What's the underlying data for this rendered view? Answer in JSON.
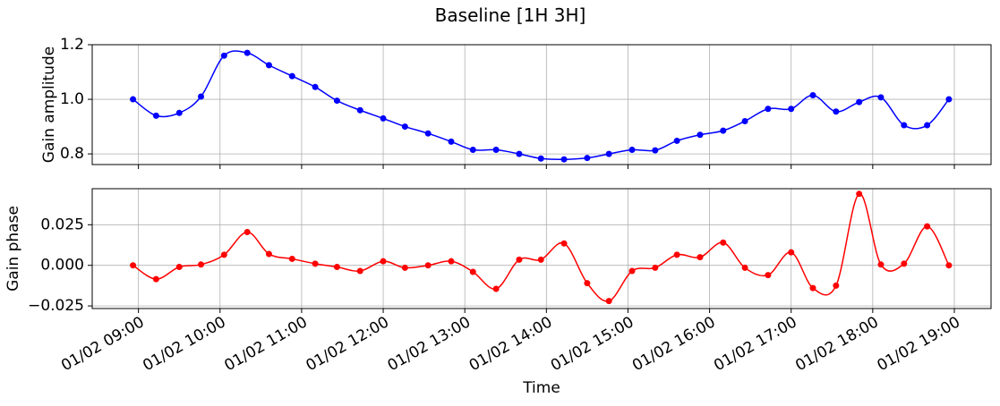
{
  "title": "Baseline [1H 3H]",
  "chart_data": [
    {
      "type": "line",
      "ylabel": "Gain amplitude",
      "grid": true,
      "x": [
        "01/02 08:56",
        "01/02 09:13",
        "01/02 09:30",
        "01/02 09:46",
        "01/02 10:03",
        "01/02 10:20",
        "01/02 10:36",
        "01/02 10:53",
        "01/02 11:10",
        "01/02 11:26",
        "01/02 11:43",
        "01/02 12:00",
        "01/02 12:16",
        "01/02 12:33",
        "01/02 12:50",
        "01/02 13:06",
        "01/02 13:23",
        "01/02 13:40",
        "01/02 13:56",
        "01/02 14:13",
        "01/02 14:30",
        "01/02 14:46",
        "01/02 15:03",
        "01/02 15:20",
        "01/02 15:36",
        "01/02 15:53",
        "01/02 16:10",
        "01/02 16:26",
        "01/02 16:43",
        "01/02 17:00",
        "01/02 17:16",
        "01/02 17:33",
        "01/02 17:50",
        "01/02 18:06",
        "01/02 18:23",
        "01/02 18:40",
        "01/02 18:56"
      ],
      "series": [
        {
          "color": "#0000ff",
          "values": [
            1.0,
            0.94,
            0.95,
            1.01,
            1.16,
            1.17,
            1.125,
            1.085,
            1.045,
            0.995,
            0.96,
            0.93,
            0.9,
            0.875,
            0.845,
            0.815,
            0.815,
            0.8,
            0.783,
            0.78,
            0.785,
            0.8,
            0.815,
            0.813,
            0.848,
            0.87,
            0.885,
            0.92,
            0.965,
            0.965,
            1.015,
            0.955,
            0.99,
            1.007,
            0.905,
            0.905,
            1.0
          ]
        }
      ],
      "ylim": [
        0.761,
        1.2
      ],
      "yticks": [
        0.8,
        {
          "value": 1,
          "label": "1.0"
        },
        1.2
      ]
    },
    {
      "type": "line",
      "ylabel": "Gain phase",
      "xlabel": "Time",
      "grid": true,
      "x": [
        "01/02 08:56",
        "01/02 09:13",
        "01/02 09:30",
        "01/02 09:46",
        "01/02 10:03",
        "01/02 10:20",
        "01/02 10:36",
        "01/02 10:53",
        "01/02 11:10",
        "01/02 11:26",
        "01/02 11:43",
        "01/02 12:00",
        "01/02 12:16",
        "01/02 12:33",
        "01/02 12:50",
        "01/02 13:06",
        "01/02 13:23",
        "01/02 13:40",
        "01/02 13:56",
        "01/02 14:13",
        "01/02 14:30",
        "01/02 14:46",
        "01/02 15:03",
        "01/02 15:20",
        "01/02 15:36",
        "01/02 15:53",
        "01/02 16:10",
        "01/02 16:26",
        "01/02 16:43",
        "01/02 17:00",
        "01/02 17:16",
        "01/02 17:33",
        "01/02 17:50",
        "01/02 18:06",
        "01/02 18:23",
        "01/02 18:40",
        "01/02 18:56"
      ],
      "series": [
        {
          "color": "#ff0000",
          "values": [
            0,
            -0.0085,
            -0.001,
            0.0005,
            0.0065,
            0.0205,
            0.007,
            0.004,
            0.001,
            -0.001,
            -0.0035,
            0.0025,
            -0.0015,
            0,
            0.0025,
            -0.004,
            -0.0145,
            0.0035,
            0.0035,
            0.0135,
            -0.011,
            -0.022,
            -0.0035,
            -0.0015,
            0.0065,
            0.005,
            0.014,
            -0.0015,
            -0.006,
            0.008,
            -0.014,
            -0.0125,
            0.044,
            0.0005,
            0.001,
            0.024,
            0
          ]
        }
      ],
      "ylim": [
        -0.0266,
        0.0472
      ],
      "yticks": [
        {
          "value": -0.025,
          "label": "−0.025"
        },
        {
          "value": 0,
          "label": "0.000"
        },
        0.025
      ],
      "xlim": [
        "01/02 08:26",
        "01/02 19:27"
      ],
      "xticks": [
        "01/02 09:00",
        "01/02 10:00",
        "01/02 11:00",
        "01/02 12:00",
        "01/02 13:00",
        "01/02 14:00",
        "01/02 15:00",
        "01/02 16:00",
        "01/02 17:00",
        "01/02 18:00",
        "01/02 19:00"
      ]
    }
  ]
}
